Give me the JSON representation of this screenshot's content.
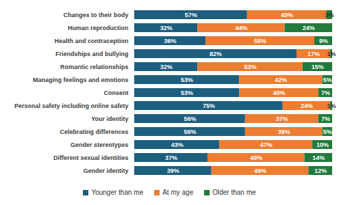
{
  "chart_data": {
    "type": "bar",
    "orientation": "horizontal",
    "stacked": true,
    "data_labels": true,
    "tick_labels": "y",
    "legend": "bottom",
    "xlim": [
      0,
      100
    ],
    "categories": [
      "Changes to their body",
      "Human reproduction",
      "Health and contraception",
      "Friendships and bullying",
      "Romantic relationships",
      "Managing feelings and emotions",
      "Consent",
      "Personal safety including online safety",
      "Your identity",
      "Celebrating differences",
      "Gender stereotypes",
      "Different sexual identities",
      "Gender identity"
    ],
    "series": [
      {
        "name": "Younger than me",
        "color": "#1d5e7e",
        "values": [
          57,
          32,
          36,
          82,
          32,
          53,
          53,
          75,
          56,
          56,
          43,
          37,
          39
        ],
        "value_labels": [
          "57%",
          "32%",
          "36%",
          "82%",
          "32%",
          "53%",
          "53%",
          "75%",
          "56%",
          "56%",
          "43%",
          "37%",
          "39%"
        ]
      },
      {
        "name": "At my age",
        "color": "#ed7d31",
        "values": [
          40,
          44,
          55,
          17,
          53,
          42,
          40,
          24,
          37,
          39,
          47,
          49,
          49
        ],
        "value_labels": [
          "40%",
          "44%",
          "55%",
          "17%",
          "53%",
          "42%",
          "40%",
          "24%",
          "37%",
          "39%",
          "47%",
          "49%",
          "49%"
        ]
      },
      {
        "name": "Older than me",
        "color": "#217a3c",
        "values": [
          3,
          24,
          9,
          1,
          15,
          5,
          7,
          1,
          7,
          5,
          10,
          14,
          12
        ],
        "value_labels": [
          "3%",
          "24%",
          "9%",
          "1%",
          "15%",
          "5%",
          "7%",
          "1%",
          "7%",
          "5%",
          "10%",
          "14%",
          "12%"
        ]
      }
    ]
  }
}
